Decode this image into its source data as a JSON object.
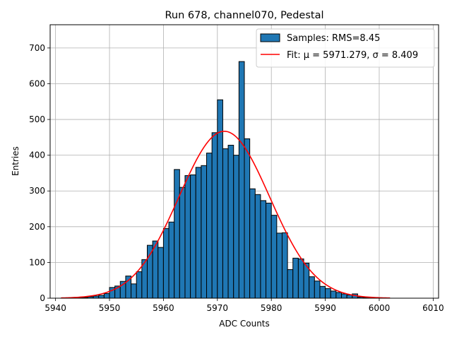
{
  "chart_data": {
    "type": "bar",
    "title": "Run 678, channel070, Pedestal",
    "xlabel": "ADC Counts",
    "ylabel": "Entries",
    "xlim": [
      5939,
      6011
    ],
    "ylim": [
      0,
      765
    ],
    "x_ticks": [
      5940,
      5950,
      5960,
      5970,
      5980,
      5990,
      6000,
      6010
    ],
    "y_ticks": [
      0,
      100,
      200,
      300,
      400,
      500,
      600,
      700
    ],
    "grid": true,
    "legend_position": "top-right",
    "colors": {
      "bars": "#1f77b4",
      "bar_edge": "#000000",
      "fit": "#ff0000",
      "grid": "#b0b0b0"
    },
    "series": [
      {
        "name": "Samples: RMS=8.45",
        "kind": "histogram",
        "bin_width": 1,
        "bins": [
          {
            "x": 5943,
            "y": 1
          },
          {
            "x": 5944,
            "y": 1
          },
          {
            "x": 5945,
            "y": 2
          },
          {
            "x": 5946,
            "y": 4
          },
          {
            "x": 5947,
            "y": 6
          },
          {
            "x": 5948,
            "y": 8
          },
          {
            "x": 5949,
            "y": 13
          },
          {
            "x": 5950,
            "y": 30
          },
          {
            "x": 5951,
            "y": 34
          },
          {
            "x": 5952,
            "y": 47
          },
          {
            "x": 5953,
            "y": 62
          },
          {
            "x": 5954,
            "y": 40
          },
          {
            "x": 5955,
            "y": 74
          },
          {
            "x": 5956,
            "y": 108
          },
          {
            "x": 5957,
            "y": 148
          },
          {
            "x": 5958,
            "y": 160
          },
          {
            "x": 5959,
            "y": 142
          },
          {
            "x": 5960,
            "y": 195
          },
          {
            "x": 5961,
            "y": 213
          },
          {
            "x": 5962,
            "y": 360
          },
          {
            "x": 5963,
            "y": 310
          },
          {
            "x": 5964,
            "y": 343
          },
          {
            "x": 5965,
            "y": 345
          },
          {
            "x": 5966,
            "y": 366
          },
          {
            "x": 5967,
            "y": 371
          },
          {
            "x": 5968,
            "y": 406
          },
          {
            "x": 5969,
            "y": 463
          },
          {
            "x": 5970,
            "y": 555
          },
          {
            "x": 5971,
            "y": 418
          },
          {
            "x": 5972,
            "y": 428
          },
          {
            "x": 5973,
            "y": 400
          },
          {
            "x": 5974,
            "y": 662
          },
          {
            "x": 5975,
            "y": 446
          },
          {
            "x": 5976,
            "y": 306
          },
          {
            "x": 5977,
            "y": 290
          },
          {
            "x": 5978,
            "y": 273
          },
          {
            "x": 5979,
            "y": 266
          },
          {
            "x": 5980,
            "y": 232
          },
          {
            "x": 5981,
            "y": 182
          },
          {
            "x": 5982,
            "y": 183
          },
          {
            "x": 5983,
            "y": 80
          },
          {
            "x": 5984,
            "y": 112
          },
          {
            "x": 5985,
            "y": 110
          },
          {
            "x": 5986,
            "y": 98
          },
          {
            "x": 5987,
            "y": 60
          },
          {
            "x": 5988,
            "y": 48
          },
          {
            "x": 5989,
            "y": 33
          },
          {
            "x": 5990,
            "y": 27
          },
          {
            "x": 5991,
            "y": 20
          },
          {
            "x": 5992,
            "y": 16
          },
          {
            "x": 5993,
            "y": 12
          },
          {
            "x": 5994,
            "y": 9
          },
          {
            "x": 5995,
            "y": 12
          },
          {
            "x": 5996,
            "y": 3
          },
          {
            "x": 5997,
            "y": 2
          },
          {
            "x": 5998,
            "y": 1
          }
        ]
      },
      {
        "name": "Fit: μ = 5971.279, σ = 8.409",
        "kind": "gaussian",
        "mu": 5971.279,
        "sigma": 8.409,
        "amplitude": 467,
        "x_range": [
          5941,
          6002
        ]
      }
    ]
  }
}
